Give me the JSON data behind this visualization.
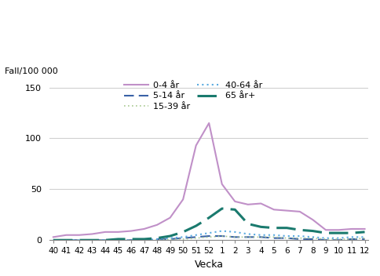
{
  "weeks": [
    40,
    41,
    42,
    43,
    44,
    45,
    46,
    47,
    48,
    49,
    50,
    51,
    52,
    1,
    2,
    3,
    4,
    5,
    6,
    7,
    8,
    9,
    10,
    11,
    12
  ],
  "week_labels": [
    "40",
    "41",
    "42",
    "43",
    "44",
    "45",
    "46",
    "47",
    "48",
    "49",
    "50",
    "51",
    "52",
    "1",
    "2",
    "3",
    "4",
    "5",
    "6",
    "7",
    "8",
    "9",
    "10",
    "11",
    "12"
  ],
  "series_order": [
    "0-4 år",
    "5-14 år",
    "15-39 år",
    "40-64 år",
    "65 år+"
  ],
  "series": {
    "0-4 år": {
      "values": [
        3,
        5,
        5,
        6,
        8,
        8,
        9,
        11,
        15,
        22,
        40,
        93,
        115,
        55,
        38,
        35,
        36,
        30,
        29,
        28,
        20,
        10,
        10,
        11,
        11
      ],
      "color": "#c090c8",
      "linestyle": "solid",
      "linewidth": 1.5,
      "label": "0-4 år",
      "dashes": []
    },
    "5-14 år": {
      "values": [
        0,
        0,
        0,
        0,
        0,
        0,
        0,
        0,
        1,
        1,
        2,
        3,
        4,
        4,
        3,
        3,
        3,
        2,
        2,
        1,
        1,
        0,
        0,
        1,
        1
      ],
      "color": "#3a62a7",
      "linestyle": "dashed",
      "linewidth": 1.5,
      "label": "5-14 år",
      "dashes": [
        6,
        3
      ]
    },
    "15-39 år": {
      "values": [
        0,
        0,
        0,
        0,
        0,
        0,
        0,
        0,
        0,
        1,
        1,
        2,
        3,
        4,
        3,
        3,
        3,
        3,
        2,
        2,
        2,
        1,
        1,
        1,
        2
      ],
      "color": "#a8c890",
      "linestyle": "dotted",
      "linewidth": 1.2,
      "label": "15-39 år",
      "dashes": [
        1,
        2
      ]
    },
    "40-64 år": {
      "values": [
        0,
        0,
        0,
        0,
        0,
        0,
        0,
        0,
        1,
        2,
        3,
        5,
        7,
        9,
        8,
        6,
        5,
        5,
        4,
        4,
        3,
        2,
        2,
        3,
        3
      ],
      "color": "#5aabe0",
      "linestyle": "dotted",
      "linewidth": 1.5,
      "label": "40-64 år",
      "dashes": [
        1,
        2
      ]
    },
    "65 år+": {
      "values": [
        0,
        0,
        0,
        0,
        0,
        1,
        1,
        1,
        2,
        4,
        8,
        14,
        22,
        31,
        30,
        16,
        13,
        12,
        12,
        10,
        9,
        7,
        7,
        7,
        8
      ],
      "color": "#1a7a6e",
      "linestyle": "dashed",
      "linewidth": 2.2,
      "label": "65 år+",
      "dashes": [
        8,
        3
      ]
    }
  },
  "ylabel": "Fall/100 000",
  "xlabel": "Vecka",
  "ylim": [
    0,
    160
  ],
  "yticks": [
    0,
    50,
    100,
    150
  ],
  "background_color": "#ffffff",
  "grid_color": "#d0d0d0"
}
